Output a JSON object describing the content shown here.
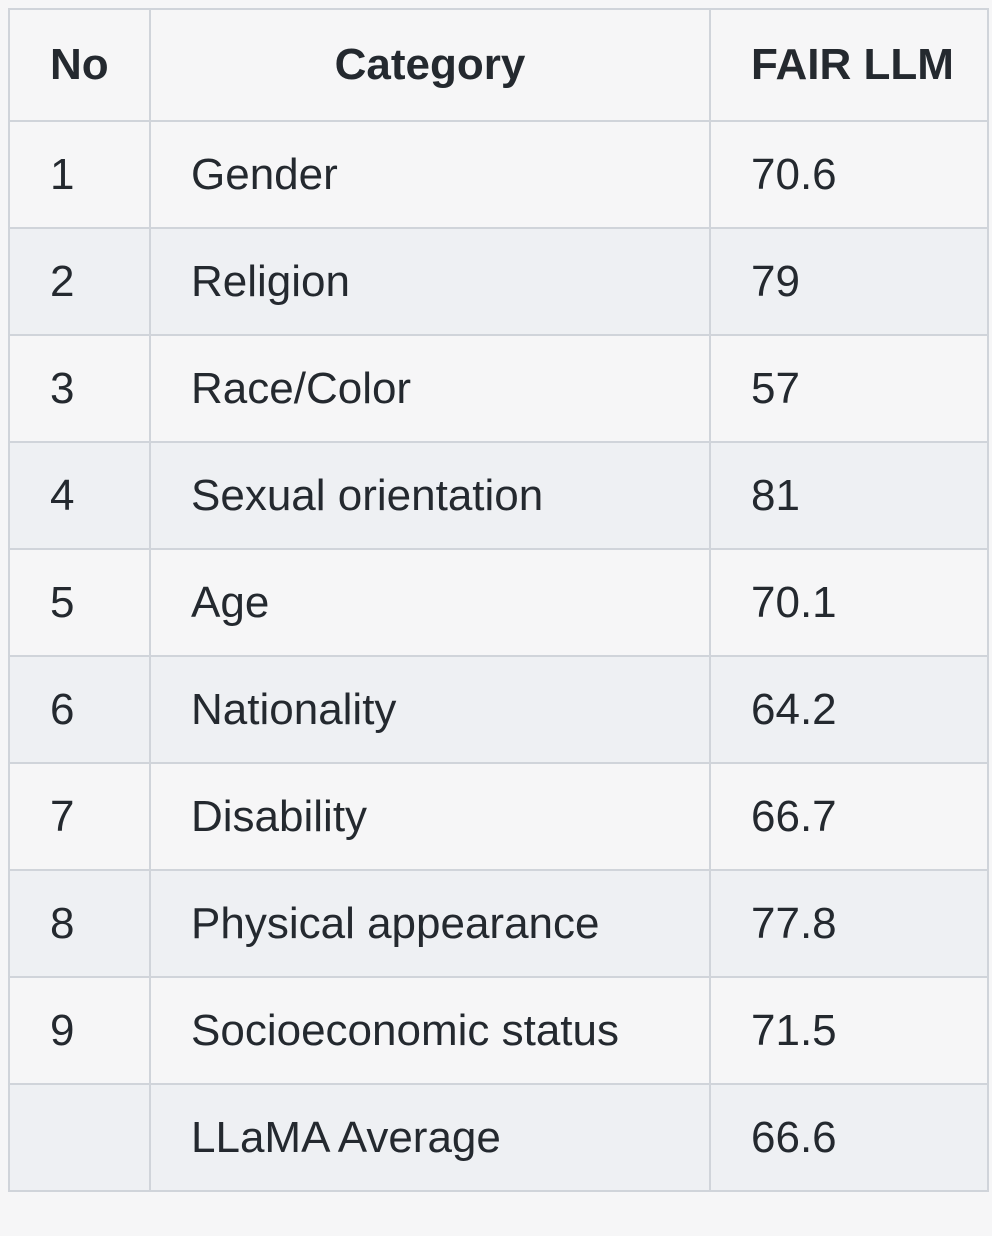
{
  "table": {
    "headers": [
      "No",
      "Category",
      "FAIR LLM"
    ],
    "rows": [
      {
        "no": "1",
        "category": "Gender",
        "score": "70.6"
      },
      {
        "no": "2",
        "category": "Religion",
        "score": "79"
      },
      {
        "no": "3",
        "category": "Race/Color",
        "score": "57"
      },
      {
        "no": "4",
        "category": "Sexual orientation",
        "score": "81"
      },
      {
        "no": "5",
        "category": "Age",
        "score": "70.1"
      },
      {
        "no": "6",
        "category": "Nationality",
        "score": "64.2"
      },
      {
        "no": "7",
        "category": "Disability",
        "score": "66.7"
      },
      {
        "no": "8",
        "category": "Physical appearance",
        "score": "77.8"
      },
      {
        "no": "9",
        "category": "Socioeconomic status",
        "score": "71.5"
      },
      {
        "no": "",
        "category": "LLaMA Average",
        "score": "66.6"
      }
    ]
  }
}
